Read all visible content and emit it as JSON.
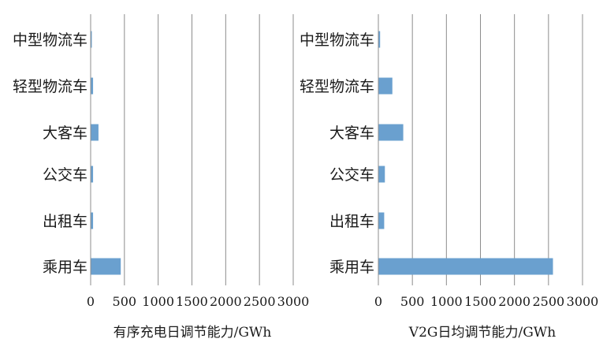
{
  "chart_data": [
    {
      "type": "bar",
      "orientation": "horizontal",
      "categories": [
        "中型物流车",
        "轻型物流车",
        "大客车",
        "公交车",
        "出租车",
        "乘用车"
      ],
      "values": [
        5,
        30,
        110,
        30,
        30,
        440
      ],
      "xlabel": "有序充电日调节能力/GWh",
      "xlim": [
        0,
        3000
      ],
      "xticks": [
        0,
        500,
        1000,
        1500,
        2000,
        2500,
        3000
      ],
      "grid": "vertical",
      "bar_color": "#6aa0cf"
    },
    {
      "type": "bar",
      "orientation": "horizontal",
      "categories": [
        "中型物流车",
        "轻型物流车",
        "大客车",
        "公交车",
        "出租车",
        "乘用车"
      ],
      "values": [
        20,
        200,
        360,
        90,
        80,
        2560
      ],
      "xlabel": "V2G日均调节能力/GWh",
      "xlim": [
        0,
        3000
      ],
      "xticks": [
        0,
        500,
        1000,
        1500,
        2000,
        2500,
        3000
      ],
      "grid": "vertical",
      "bar_color": "#6aa0cf"
    }
  ]
}
